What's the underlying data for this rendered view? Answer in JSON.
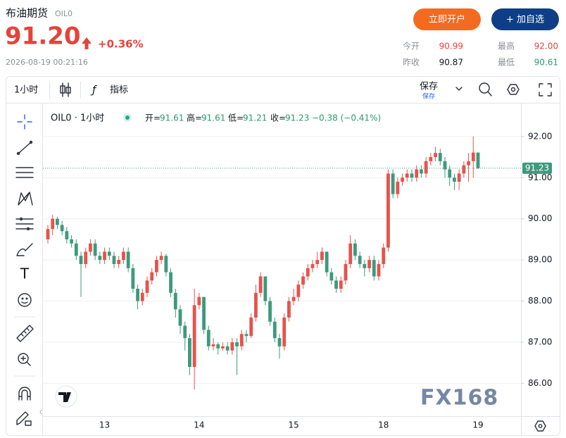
{
  "header": {
    "name": "布油期货",
    "code": "OIL0",
    "price": "91.20",
    "change": "+0.36%",
    "time": "2026-08-19 00:21:16",
    "open_account": "立即开户",
    "add_watchlist": "+ 加自选",
    "stats": [
      {
        "label": "今开",
        "value": "90.99"
      },
      {
        "label": "最高",
        "value": "92.00"
      },
      {
        "label": "昨收",
        "value": "90.87"
      },
      {
        "label": "最低",
        "value": "90.61"
      }
    ]
  },
  "toolbar": {
    "interval": "1小时",
    "indicators": "指标",
    "save": "保存",
    "save_sub": "保存"
  },
  "chart_data": {
    "type": "candlestick",
    "symbol": "OIL0 · 1小时",
    "open_label": "开=",
    "high_label": "高=",
    "low_label": "低=",
    "close_label": "收=",
    "change": "−0.38 (−0.41%)",
    "watermark": "FX168",
    "up_color": "#e5534b",
    "down_color": "#3d9a7c",
    "grid": true,
    "ylim": [
      85.22,
      92.75
    ],
    "yticks": [
      {
        "value": 86,
        "label": "86.00"
      },
      {
        "value": 87,
        "label": "87.00"
      },
      {
        "value": 88,
        "label": "88.00"
      },
      {
        "value": 89,
        "label": "89.00"
      },
      {
        "value": 90,
        "label": "90.00"
      },
      {
        "value": 91,
        "label": "91.00"
      },
      {
        "value": 92,
        "label": "92.00"
      }
    ],
    "categories": [
      null,
      null,
      null,
      null,
      null,
      null,
      null,
      null,
      null,
      null,
      null,
      null,
      "13",
      null,
      null,
      null,
      null,
      null,
      null,
      null,
      null,
      null,
      null,
      null,
      null,
      null,
      null,
      null,
      null,
      null,
      null,
      null,
      "14",
      null,
      null,
      null,
      null,
      null,
      null,
      null,
      null,
      null,
      null,
      null,
      null,
      null,
      null,
      null,
      null,
      null,
      null,
      null,
      "15",
      null,
      null,
      null,
      null,
      null,
      null,
      null,
      null,
      null,
      null,
      null,
      null,
      null,
      null,
      null,
      null,
      null,
      null,
      "18",
      null,
      null,
      null,
      null,
      null,
      null,
      null,
      null,
      null,
      null,
      null,
      null,
      null,
      null,
      null,
      null,
      null,
      null,
      null,
      "19"
    ],
    "open": [
      89.5,
      89.75,
      90.0,
      89.85,
      89.7,
      89.5,
      89.4,
      89.1,
      88.9,
      89.2,
      89.4,
      89.1,
      89.0,
      89.2,
      89.1,
      88.9,
      89.0,
      89.2,
      88.8,
      88.3,
      88.0,
      88.2,
      88.5,
      88.7,
      89.0,
      89.1,
      88.7,
      88.2,
      87.8,
      87.4,
      87.1,
      86.4,
      87.9,
      88.1,
      87.3,
      86.9,
      86.95,
      86.85,
      86.9,
      86.8,
      87.0,
      86.9,
      87.2,
      87.15,
      87.6,
      88.2,
      88.6,
      88.0,
      87.5,
      87.1,
      86.9,
      87.6,
      88.0,
      88.1,
      88.4,
      88.6,
      88.8,
      88.9,
      89.0,
      89.2,
      88.7,
      88.5,
      88.3,
      88.5,
      88.9,
      89.4,
      89.1,
      88.9,
      88.8,
      89.0,
      88.6,
      88.9,
      89.3,
      91.1,
      90.6,
      90.9,
      91.0,
      91.1,
      91.0,
      91.2,
      91.1,
      91.4,
      91.5,
      91.6,
      91.4,
      91.2,
      91.0,
      90.9,
      91.1,
      91.3,
      91.4,
      91.61
    ],
    "high": [
      89.85,
      90.1,
      90.05,
      89.95,
      89.8,
      89.6,
      89.5,
      89.2,
      89.3,
      89.5,
      89.5,
      89.2,
      89.3,
      89.3,
      89.2,
      89.1,
      89.3,
      89.3,
      88.9,
      88.4,
      88.3,
      88.6,
      88.8,
      89.1,
      89.2,
      89.15,
      88.8,
      88.3,
      87.9,
      87.5,
      87.2,
      88.3,
      88.2,
      88.1,
      87.4,
      87.1,
      87.0,
      87.0,
      87.0,
      87.1,
      87.1,
      87.3,
      87.3,
      87.7,
      88.4,
      88.7,
      88.6,
      88.1,
      87.6,
      87.2,
      87.7,
      88.1,
      88.3,
      88.5,
      88.7,
      88.9,
      89.0,
      89.2,
      89.3,
      89.2,
      88.8,
      88.6,
      88.6,
      89.0,
      89.6,
      89.5,
      89.2,
      89.0,
      89.1,
      89.1,
      89.0,
      89.4,
      91.2,
      91.2,
      91.0,
      91.1,
      91.2,
      91.2,
      91.3,
      91.3,
      91.5,
      91.6,
      91.75,
      91.7,
      91.5,
      91.3,
      91.1,
      91.2,
      91.4,
      91.6,
      92.0,
      91.61
    ],
    "low": [
      89.4,
      89.6,
      89.75,
      89.6,
      89.4,
      89.3,
      89.0,
      88.1,
      88.8,
      89.1,
      89.0,
      88.9,
      88.9,
      89.0,
      88.8,
      88.8,
      88.9,
      88.7,
      88.2,
      87.8,
      87.9,
      88.1,
      88.4,
      88.6,
      88.9,
      88.6,
      88.1,
      87.6,
      87.2,
      86.8,
      86.2,
      85.85,
      87.8,
      87.2,
      86.8,
      86.8,
      86.7,
      86.8,
      86.7,
      86.7,
      86.2,
      86.8,
      87.0,
      87.1,
      87.5,
      88.1,
      87.9,
      87.4,
      87.0,
      86.6,
      86.8,
      87.5,
      87.9,
      88.0,
      88.3,
      88.5,
      88.7,
      88.8,
      88.9,
      88.6,
      88.4,
      88.2,
      88.2,
      88.4,
      88.8,
      89.0,
      88.8,
      88.6,
      88.7,
      88.5,
      88.5,
      88.8,
      89.2,
      90.5,
      90.5,
      90.8,
      90.9,
      90.9,
      90.9,
      91.0,
      91.0,
      91.3,
      91.4,
      91.3,
      91.0,
      90.8,
      90.7,
      90.7,
      91.0,
      90.9,
      91.0,
      91.21
    ],
    "close": [
      89.75,
      90.0,
      89.85,
      89.7,
      89.5,
      89.4,
      89.1,
      88.9,
      89.2,
      89.4,
      89.1,
      89.0,
      89.2,
      89.1,
      88.9,
      89.0,
      89.2,
      88.8,
      88.3,
      88.0,
      88.2,
      88.5,
      88.7,
      89.0,
      89.1,
      88.7,
      88.2,
      87.8,
      87.4,
      87.1,
      86.4,
      87.9,
      88.1,
      87.3,
      86.9,
      86.95,
      86.85,
      86.9,
      86.8,
      87.0,
      86.9,
      87.2,
      87.15,
      87.6,
      88.2,
      88.6,
      88.0,
      87.5,
      87.1,
      86.9,
      87.6,
      88.0,
      88.1,
      88.4,
      88.6,
      88.8,
      88.9,
      89.0,
      89.2,
      88.7,
      88.5,
      88.3,
      88.5,
      88.9,
      89.4,
      89.1,
      88.9,
      88.8,
      89.0,
      88.6,
      88.9,
      89.3,
      91.1,
      90.6,
      90.9,
      91.0,
      91.1,
      91.0,
      91.2,
      91.1,
      91.4,
      91.5,
      91.6,
      91.4,
      91.2,
      91.0,
      90.9,
      91.1,
      91.3,
      91.4,
      91.61,
      91.23
    ]
  }
}
